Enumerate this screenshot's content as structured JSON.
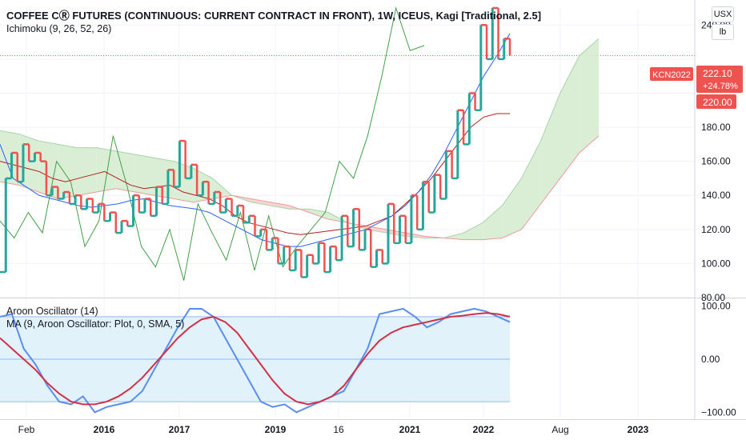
{
  "header": {
    "title": "COFFEE CⓇ FUTURES (CONTINUOUS: CURRENT CONTRACT IN FRONT), 1W, ICEUS, Kagi [Traditional, 2.5]",
    "ichimoku_label": "Ichimoku (9, 26, 52, 26)",
    "aroon_label": "Aroon Oscillator (14)",
    "ma_label": "MA (9, Aroon Oscillator: Plot, 0, SMA, 5)"
  },
  "units": {
    "currency": "USX",
    "unit": "lb"
  },
  "price_tags": {
    "symbol": "KCN2022",
    "last_price": "222.10",
    "change_pct": "+24.78%",
    "level": "220.00"
  },
  "colors": {
    "up": "#26a69a",
    "down": "#ef5350",
    "tenkan": "#2962ff",
    "kijun": "#b71c1c",
    "chikou": "#43a047",
    "cloud_bear": "#f8cfd0",
    "cloud_bull": "#d6ecd2",
    "aroon": "#5b8def",
    "aroon_ma": "#d32f46",
    "aroon_band": "#e1f2fb"
  },
  "chart_data": [
    {
      "type": "line",
      "subtype": "kagi",
      "title": "COFFEE C FUTURES (CONTINUOUS: CURRENT CONTRACT IN FRONT), 1W, ICEUS, Kagi [Traditional, 2.5]",
      "ylim": [
        80,
        250
      ],
      "y_ticks": [
        80,
        100,
        120,
        140,
        160,
        180,
        200,
        220,
        240
      ],
      "y_tick_labels": [
        "80.00",
        "100.00",
        "120.00",
        "140.00",
        "160.00",
        "180.00",
        "",
        "",
        "240.00"
      ],
      "x_tick_labels": [
        "Feb",
        "2016",
        "2017",
        "2019",
        "16",
        "2021",
        "2022",
        "Aug",
        "2023"
      ],
      "grid": true,
      "series": [
        {
          "kind": "kagi",
          "values": [
            95,
            150,
            165,
            148,
            170,
            160,
            165,
            160,
            140,
            145,
            138,
            142,
            135,
            140,
            132,
            138,
            130,
            135,
            125,
            130,
            118,
            125,
            122,
            140,
            130,
            138,
            128,
            145,
            135,
            155,
            145,
            172,
            150,
            158,
            140,
            148,
            135,
            142,
            130,
            138,
            128,
            134,
            124,
            128,
            116,
            120,
            108,
            115,
            100,
            110,
            96,
            108,
            92,
            105,
            100,
            112,
            95,
            110,
            102,
            128,
            110,
            132,
            108,
            120,
            98,
            108,
            100,
            135,
            112,
            128,
            112,
            140,
            120,
            148,
            130,
            152,
            138,
            166,
            150,
            190,
            170,
            200,
            190,
            240,
            220,
            250,
            220,
            232,
            222
          ]
        },
        {
          "name": "Tenkan",
          "kind": "line",
          "values": [
            170,
            150,
            145,
            140,
            138,
            136,
            134,
            133,
            134,
            135,
            137,
            138,
            136,
            134,
            133,
            132,
            130,
            126,
            122,
            118,
            114,
            112,
            110,
            110,
            112,
            114,
            116,
            118,
            120,
            124,
            128,
            134,
            142,
            152,
            165,
            180,
            195,
            210,
            222,
            235
          ]
        },
        {
          "name": "Kijun",
          "kind": "line",
          "values": [
            160,
            158,
            156,
            154,
            150,
            148,
            150,
            152,
            154,
            150,
            146,
            144,
            145,
            146,
            142,
            140,
            138,
            134,
            128,
            124,
            122,
            120,
            118,
            117,
            118,
            119,
            120,
            121,
            122,
            125,
            128,
            135,
            142,
            150,
            160,
            170,
            180,
            186,
            188,
            188
          ]
        },
        {
          "name": "Chikou",
          "kind": "line",
          "values": [
            125,
            115,
            130,
            118,
            160,
            148,
            110,
            125,
            175,
            145,
            110,
            98,
            120,
            90,
            135,
            118,
            102,
            130,
            96,
            128,
            98,
            110,
            120,
            130,
            160,
            150,
            175,
            210,
            250,
            225,
            228
          ]
        },
        {
          "name": "Senkou A",
          "kind": "line",
          "values": [
            178,
            176,
            172,
            170,
            168,
            168,
            166,
            164,
            162,
            160,
            156,
            150,
            140,
            136,
            134,
            132,
            132,
            130,
            124,
            120,
            118,
            116,
            115,
            115,
            118,
            124,
            134,
            150,
            172,
            200,
            222,
            232
          ]
        },
        {
          "name": "Senkou B",
          "kind": "line",
          "values": [
            148,
            146,
            142,
            138,
            140,
            142,
            144,
            142,
            140,
            138,
            136,
            138,
            140,
            138,
            136,
            134,
            130,
            126,
            124,
            122,
            120,
            118,
            116,
            115,
            114,
            114,
            115,
            120,
            135,
            150,
            165,
            175
          ]
        }
      ]
    },
    {
      "type": "line",
      "title": "Aroon Oscillator (14)",
      "ylim": [
        -110,
        110
      ],
      "y_ticks": [
        -100,
        0,
        100
      ],
      "y_tick_labels": [
        "−100.00",
        "0.00",
        "100.00"
      ],
      "band": [
        -80,
        80
      ],
      "series": [
        {
          "name": "Aroon Oscillator",
          "values": [
            80,
            85,
            20,
            -10,
            -50,
            -80,
            -85,
            -70,
            -100,
            -90,
            -85,
            -80,
            -60,
            -20,
            20,
            60,
            95,
            95,
            80,
            40,
            0,
            -40,
            -80,
            -90,
            -85,
            -100,
            -90,
            -80,
            -70,
            -60,
            -20,
            20,
            85,
            90,
            95,
            80,
            60,
            70,
            85,
            90,
            95,
            90,
            80,
            70
          ]
        },
        {
          "name": "MA",
          "values": [
            40,
            20,
            0,
            -20,
            -45,
            -65,
            -80,
            -85,
            -85,
            -80,
            -70,
            -55,
            -35,
            -10,
            15,
            40,
            60,
            75,
            80,
            70,
            50,
            20,
            -10,
            -40,
            -65,
            -80,
            -85,
            -80,
            -70,
            -50,
            -20,
            10,
            35,
            50,
            60,
            65,
            70,
            75,
            80,
            82,
            85,
            87,
            85,
            80
          ]
        }
      ]
    }
  ]
}
